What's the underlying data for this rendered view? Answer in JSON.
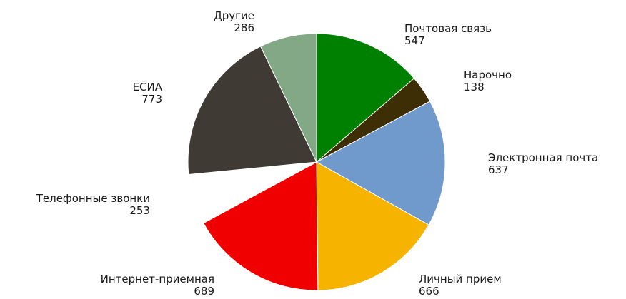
{
  "chart_data": {
    "type": "pie",
    "title": "",
    "start": "top",
    "direction": "clockwise",
    "categories": [
      "Почтовая связь",
      "Нарочно",
      "Электронная почта",
      "Личный прием",
      "Интернет-приемная",
      "Телефонные звонки",
      "ЕСИА",
      "Другие"
    ],
    "values": [
      547,
      138,
      637,
      666,
      689,
      253,
      773,
      286
    ],
    "colors": [
      "#008000",
      "#3d2e05",
      "#7099cc",
      "#f6b400",
      "#f00000",
      "#ffffff",
      "#3f3a33",
      "#82a885"
    ],
    "data_labels": "category and value"
  }
}
